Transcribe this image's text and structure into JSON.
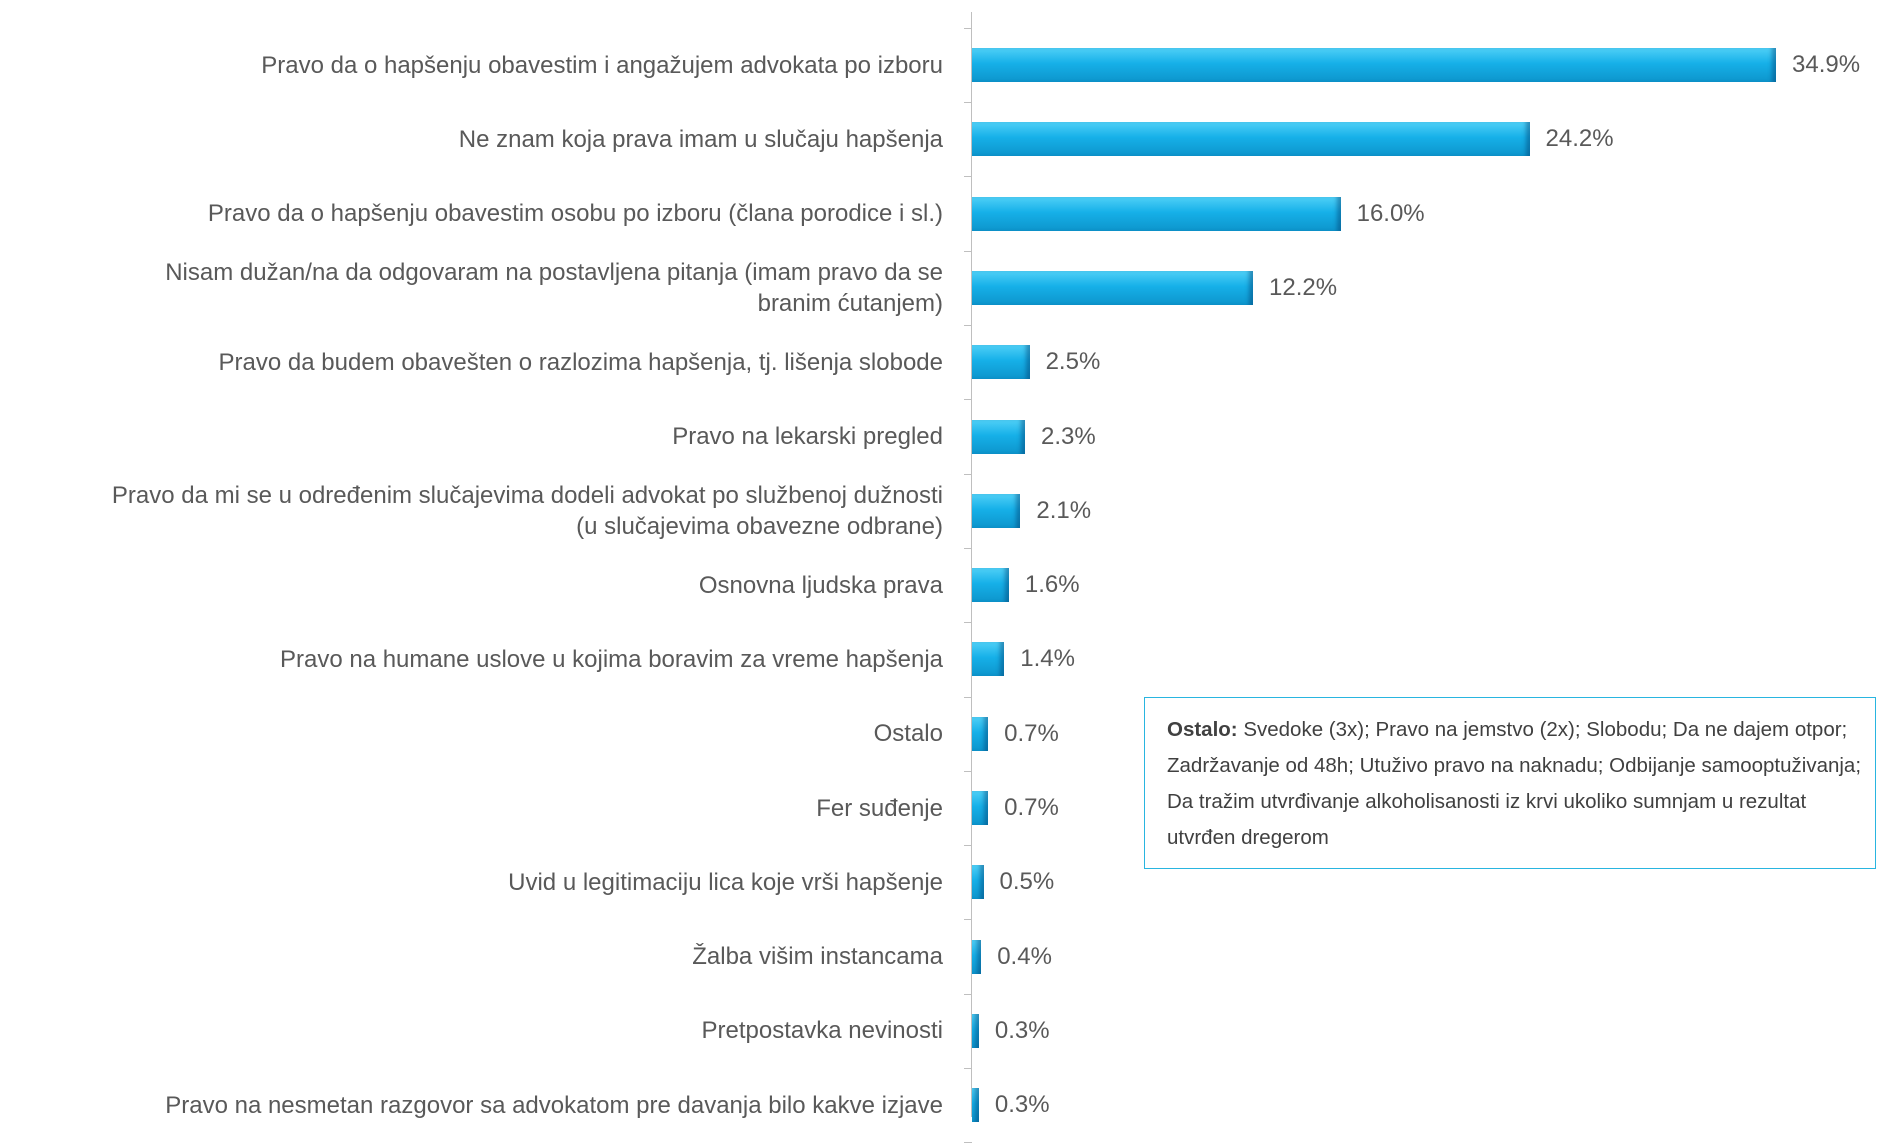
{
  "chart_data": {
    "type": "barh",
    "categories": [
      "Pravo da o hapšenju obavestim i angažujem advokata po izboru",
      "Ne znam koja prava imam u slučaju hapšenja",
      "Pravo da o hapšenju obavestim osobu po izboru (člana porodice i sl.)",
      "Nisam dužan/na da odgovaram na postavljena pitanja (imam pravo da se\nbranim ćutanjem)",
      "Pravo da budem obavešten o razlozima hapšenja, tj. lišenja slobode",
      "Pravo na lekarski pregled",
      "Pravo da mi se u određenim slučajevima dodeli advokat po službenoj dužnosti\n(u slučajevima obavezne odbrane)",
      "Osnovna ljudska prava",
      "Pravo na humane uslove u kojima boravim za vreme hapšenja",
      "Ostalo",
      "Fer suđenje",
      "Uvid u legitimaciju lica koje vrši hapšenje",
      "Žalba višim instancama",
      "Pretpostavka nevinosti",
      "Pravo na nesmetan razgovor sa advokatom pre davanja bilo kakve izjave"
    ],
    "values": [
      34.9,
      24.2,
      16.0,
      12.2,
      2.5,
      2.3,
      2.1,
      1.6,
      1.4,
      0.7,
      0.7,
      0.5,
      0.4,
      0.3,
      0.3
    ],
    "value_labels": [
      "34.9%",
      "24.2%",
      "16.0%",
      "12.2%",
      "2.5%",
      "2.3%",
      "2.1%",
      "1.6%",
      "1.4%",
      "0.7%",
      "0.7%",
      "0.5%",
      "0.4%",
      "0.3%",
      "0.3%"
    ],
    "color": "#16b0e8",
    "annotation": {
      "label": "Ostalo:",
      "text": "Svedoke (3x); Pravo na jemstvo (2x); Slobodu; Da ne dajem otpor; Zadržavanje od 48h; Utuživo pravo na naknadu; Odbijanje samooptuživanja; Da tražim utvrđivanje alkoholisanosti iz krvi ukoliko sumnjam u rezultat utvrđen dregerom"
    }
  }
}
